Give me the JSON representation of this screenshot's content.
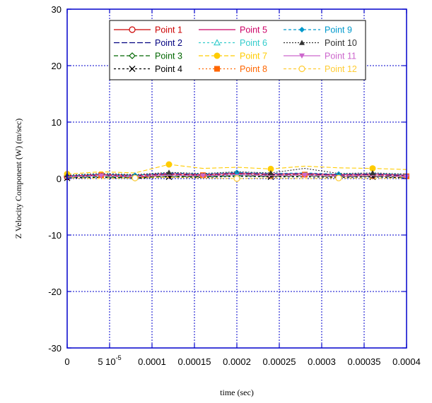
{
  "chart_data": {
    "type": "line",
    "title": "",
    "xlabel": "time (sec)",
    "ylabel": "Z Velocity Component (W) (m/sec)",
    "xlim": [
      0,
      0.0004
    ],
    "ylim": [
      -30,
      30
    ],
    "grid": true,
    "legend_position": "top",
    "x_ticks": [
      {
        "value": 0,
        "label": "0"
      },
      {
        "value": 5e-05,
        "label": "5 10"
      },
      {
        "value": 0.0001,
        "label": "0.0001"
      },
      {
        "value": 0.00015,
        "label": "0.00015"
      },
      {
        "value": 0.0002,
        "label": "0.0002"
      },
      {
        "value": 0.00025,
        "label": "0.00025"
      },
      {
        "value": 0.0003,
        "label": "0.0003"
      },
      {
        "value": 0.00035,
        "label": "0.00035"
      },
      {
        "value": 0.0004,
        "label": "0.0004"
      }
    ],
    "x_tick_exponent": "-5",
    "y_ticks": [
      {
        "value": 30,
        "label": "30"
      },
      {
        "value": 20,
        "label": "20"
      },
      {
        "value": 10,
        "label": "10"
      },
      {
        "value": 0,
        "label": "0"
      },
      {
        "value": -10,
        "label": "-10"
      },
      {
        "value": -20,
        "label": "-20"
      },
      {
        "value": -30,
        "label": "-30"
      }
    ],
    "x": [
      0,
      4e-05,
      8e-05,
      0.00012,
      0.00016,
      0.0002,
      0.00024,
      0.00028,
      0.00032,
      0.00036,
      0.0004
    ],
    "series": [
      {
        "name": "Point 1",
        "color": "#cc0000",
        "dash": "",
        "marker": "circle-open",
        "values": [
          0.3,
          0.5,
          0.2,
          0.6,
          0.4,
          0.7,
          0.5,
          0.6,
          0.4,
          0.5,
          0.3
        ]
      },
      {
        "name": "Point 2",
        "color": "#000080",
        "dash": "8,3",
        "marker": "none",
        "values": [
          0.4,
          0.6,
          0.5,
          0.8,
          0.6,
          0.9,
          0.7,
          0.8,
          0.6,
          0.7,
          0.5
        ]
      },
      {
        "name": "Point 3",
        "color": "#006600",
        "dash": "6,3",
        "marker": "diamond-open",
        "values": [
          0.2,
          0.3,
          0.1,
          0.4,
          0.3,
          0.5,
          0.4,
          0.5,
          0.3,
          0.4,
          0.2
        ]
      },
      {
        "name": "Point 4",
        "color": "#000000",
        "dash": "3,3",
        "marker": "x",
        "values": [
          0.1,
          0.2,
          0.0,
          0.3,
          0.2,
          0.4,
          0.3,
          0.3,
          0.2,
          0.3,
          0.1
        ]
      },
      {
        "name": "Point 5",
        "color": "#cc0066",
        "dash": "",
        "marker": "none",
        "values": [
          0.5,
          0.7,
          0.6,
          0.9,
          0.7,
          1.0,
          0.8,
          0.9,
          0.7,
          0.8,
          0.6
        ]
      },
      {
        "name": "Point 6",
        "color": "#33cccc",
        "dash": "3,3",
        "marker": "triangle-open",
        "values": [
          0.3,
          0.4,
          0.3,
          0.6,
          0.4,
          0.6,
          0.5,
          0.6,
          0.4,
          0.5,
          0.3
        ]
      },
      {
        "name": "Point 7",
        "color": "#ffcc00",
        "dash": "6,3",
        "marker": "circle-filled",
        "values": [
          0.8,
          1.2,
          1.0,
          2.5,
          1.8,
          2.0,
          1.7,
          2.2,
          1.9,
          1.8,
          1.6
        ]
      },
      {
        "name": "Point 8",
        "color": "#ff6600",
        "dash": "2,3",
        "marker": "square-filled",
        "values": [
          0.4,
          0.6,
          0.5,
          0.7,
          0.6,
          0.8,
          0.6,
          0.7,
          0.5,
          0.6,
          0.4
        ]
      },
      {
        "name": "Point 9",
        "color": "#0099cc",
        "dash": "4,3",
        "marker": "diamond-filled",
        "values": [
          0.5,
          0.8,
          0.6,
          1.0,
          0.8,
          1.1,
          0.9,
          1.0,
          0.8,
          0.9,
          0.7
        ]
      },
      {
        "name": "Point 10",
        "color": "#333333",
        "dash": "2,2",
        "marker": "triangle-filled",
        "values": [
          0.6,
          0.9,
          0.7,
          1.1,
          0.9,
          1.2,
          1.0,
          1.8,
          0.9,
          1.0,
          0.8
        ]
      },
      {
        "name": "Point 11",
        "color": "#cc66cc",
        "dash": "",
        "marker": "triangle-down-filled",
        "values": [
          0.3,
          0.5,
          0.4,
          0.6,
          0.5,
          0.7,
          0.5,
          0.6,
          0.4,
          0.5,
          0.3
        ]
      },
      {
        "name": "Point 12",
        "color": "#ffcc33",
        "dash": "4,3",
        "marker": "circle-open",
        "values": [
          0.1,
          0.0,
          0.1,
          0.2,
          0.1,
          0.0,
          0.1,
          0.0,
          0.1,
          0.0,
          0.1
        ]
      }
    ]
  }
}
